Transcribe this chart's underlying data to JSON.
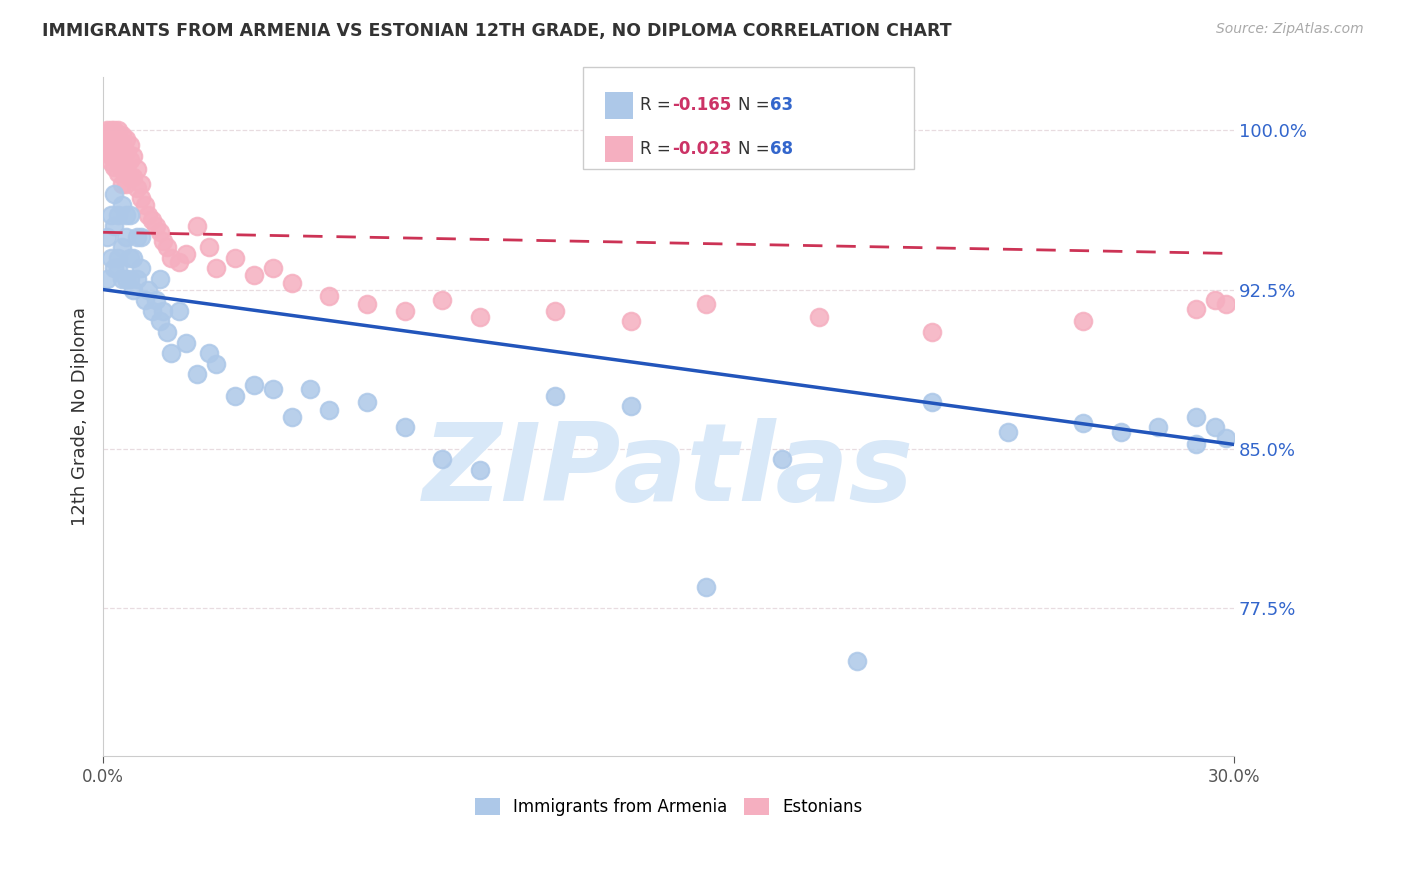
{
  "title": "IMMIGRANTS FROM ARMENIA VS ESTONIAN 12TH GRADE, NO DIPLOMA CORRELATION CHART",
  "source": "Source: ZipAtlas.com",
  "ylabel": "12th Grade, No Diploma",
  "xlim": [
    0.0,
    0.3
  ],
  "ylim": [
    0.705,
    1.025
  ],
  "ytick_values": [
    1.0,
    0.925,
    0.85,
    0.775
  ],
  "ytick_labels": [
    "100.0%",
    "92.5%",
    "85.0%",
    "77.5%"
  ],
  "xtick_labels": [
    "0.0%",
    "30.0%"
  ],
  "armenia_R": -0.165,
  "armenia_N": 63,
  "estonian_R": -0.023,
  "estonian_N": 68,
  "armenia_color": "#adc8e8",
  "estonian_color": "#f5afc0",
  "armenia_line_color": "#2255bb",
  "estonian_line_color": "#cc3355",
  "background_color": "#ffffff",
  "grid_color": "#e8dce0",
  "title_color": "#333333",
  "source_color": "#aaaaaa",
  "watermark_color": "#d8e8f8",
  "ytick_color": "#3366cc",
  "legend_text_color": "#333333",
  "legend_R_color": "#cc3366",
  "legend_N_color": "#3366cc",
  "armenia_x": [
    0.001,
    0.001,
    0.002,
    0.002,
    0.003,
    0.003,
    0.003,
    0.004,
    0.004,
    0.004,
    0.005,
    0.005,
    0.005,
    0.006,
    0.006,
    0.006,
    0.007,
    0.007,
    0.007,
    0.008,
    0.008,
    0.009,
    0.009,
    0.01,
    0.01,
    0.011,
    0.012,
    0.013,
    0.014,
    0.015,
    0.015,
    0.016,
    0.017,
    0.018,
    0.02,
    0.022,
    0.025,
    0.028,
    0.03,
    0.035,
    0.04,
    0.045,
    0.05,
    0.055,
    0.06,
    0.07,
    0.08,
    0.09,
    0.1,
    0.12,
    0.14,
    0.16,
    0.18,
    0.2,
    0.22,
    0.24,
    0.26,
    0.27,
    0.28,
    0.29,
    0.29,
    0.295,
    0.298
  ],
  "armenia_y": [
    0.95,
    0.93,
    0.96,
    0.94,
    0.955,
    0.935,
    0.97,
    0.94,
    0.96,
    0.935,
    0.945,
    0.965,
    0.93,
    0.95,
    0.93,
    0.96,
    0.94,
    0.96,
    0.93,
    0.94,
    0.925,
    0.93,
    0.95,
    0.935,
    0.95,
    0.92,
    0.925,
    0.915,
    0.92,
    0.91,
    0.93,
    0.915,
    0.905,
    0.895,
    0.915,
    0.9,
    0.885,
    0.895,
    0.89,
    0.875,
    0.88,
    0.878,
    0.865,
    0.878,
    0.868,
    0.872,
    0.86,
    0.845,
    0.84,
    0.875,
    0.87,
    0.785,
    0.845,
    0.75,
    0.872,
    0.858,
    0.862,
    0.858,
    0.86,
    0.852,
    0.865,
    0.86,
    0.855
  ],
  "estonian_x": [
    0.001,
    0.001,
    0.001,
    0.001,
    0.002,
    0.002,
    0.002,
    0.002,
    0.002,
    0.003,
    0.003,
    0.003,
    0.003,
    0.003,
    0.004,
    0.004,
    0.004,
    0.004,
    0.004,
    0.005,
    0.005,
    0.005,
    0.005,
    0.005,
    0.006,
    0.006,
    0.006,
    0.006,
    0.007,
    0.007,
    0.007,
    0.008,
    0.008,
    0.009,
    0.009,
    0.01,
    0.01,
    0.011,
    0.012,
    0.013,
    0.014,
    0.015,
    0.016,
    0.017,
    0.018,
    0.02,
    0.022,
    0.025,
    0.028,
    0.03,
    0.035,
    0.04,
    0.045,
    0.05,
    0.06,
    0.07,
    0.08,
    0.09,
    0.1,
    0.12,
    0.14,
    0.16,
    0.19,
    0.22,
    0.26,
    0.29,
    0.295,
    0.298
  ],
  "estonian_y": [
    1.0,
    0.998,
    0.995,
    0.99,
    1.0,
    0.997,
    0.993,
    0.988,
    0.985,
    1.0,
    0.997,
    0.993,
    0.988,
    0.983,
    1.0,
    0.997,
    0.992,
    0.986,
    0.98,
    0.998,
    0.994,
    0.988,
    0.982,
    0.975,
    0.996,
    0.99,
    0.983,
    0.975,
    0.993,
    0.986,
    0.978,
    0.988,
    0.978,
    0.982,
    0.973,
    0.975,
    0.968,
    0.965,
    0.96,
    0.958,
    0.955,
    0.952,
    0.948,
    0.945,
    0.94,
    0.938,
    0.942,
    0.955,
    0.945,
    0.935,
    0.94,
    0.932,
    0.935,
    0.928,
    0.922,
    0.918,
    0.915,
    0.92,
    0.912,
    0.915,
    0.91,
    0.918,
    0.912,
    0.905,
    0.91,
    0.916,
    0.92,
    0.918
  ]
}
